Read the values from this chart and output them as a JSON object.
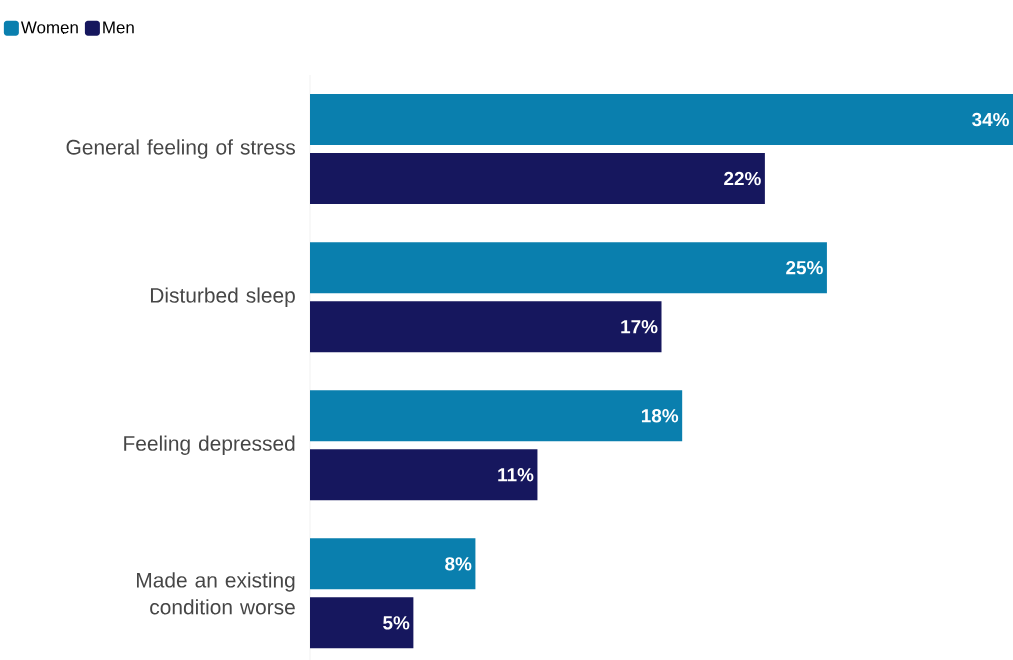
{
  "chart_data": {
    "type": "bar",
    "orientation": "horizontal",
    "categories": [
      "General feeling of stress",
      "Disturbed sleep",
      "Feeling depressed",
      "Made an existing condition worse"
    ],
    "series": [
      {
        "name": "Women",
        "color": "#0a7fae",
        "values": [
          34,
          25,
          18,
          8
        ],
        "value_labels": [
          "34%",
          "25%",
          "18%",
          "8%"
        ]
      },
      {
        "name": "Men",
        "color": "#16175e",
        "values": [
          22,
          17,
          11,
          5
        ],
        "value_labels": [
          "22%",
          "17%",
          "11%",
          "5%"
        ]
      }
    ],
    "xlim": [
      0,
      34
    ],
    "legend": "top left"
  }
}
